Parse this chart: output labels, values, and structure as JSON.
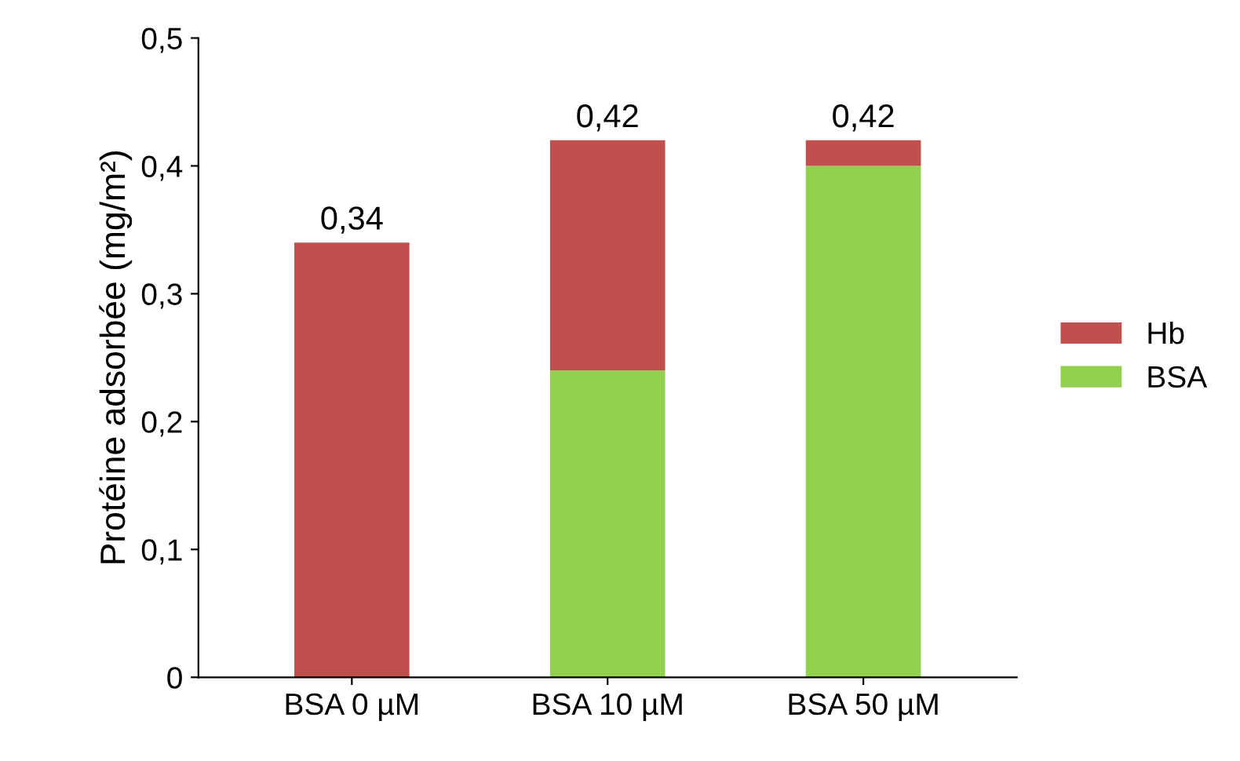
{
  "chart_data": {
    "type": "bar",
    "ylabel": "Protéine adsorbée (mg/m²)",
    "categories": [
      "BSA 0 µM",
      "BSA 10 µM",
      "BSA 50 µM"
    ],
    "series": [
      {
        "name": "BSA",
        "color": "#92d050",
        "values": [
          0,
          0.24,
          0.4
        ]
      },
      {
        "name": "Hb",
        "color": "#c0504d",
        "values": [
          0.34,
          0.18,
          0.02
        ]
      }
    ],
    "stacked": true,
    "totals": [
      "0,34",
      "0,42",
      "0,42"
    ],
    "ylim": [
      0,
      0.5
    ],
    "yticks": [
      0,
      {
        "value": 0.1,
        "label": "0,1"
      },
      {
        "value": 0.2,
        "label": "0,2"
      },
      {
        "value": 0.3,
        "label": "0,3"
      },
      {
        "value": 0.4,
        "label": "0,4"
      },
      {
        "value": 0.5,
        "label": "0,5"
      }
    ],
    "grid": false,
    "legend": "right"
  }
}
